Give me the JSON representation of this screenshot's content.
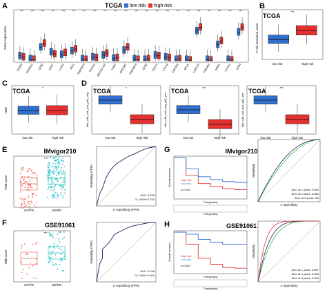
{
  "panels": {
    "A": {
      "letter": "A",
      "title": "TCGA",
      "ylabel": "Gene expression",
      "legend_low": "low risk",
      "legend_high": "high risk"
    },
    "B": {
      "letter": "B",
      "title": "TCGA",
      "ylabel": "T cell exclusion score",
      "sig": "***"
    },
    "C": {
      "letter": "C",
      "title": "TCGA",
      "ylabel": "TIDE",
      "sig": "*"
    },
    "D": {
      "letter": "D",
      "sub": [
        {
          "title": "TCGA",
          "ylabel": "tide_cd8_cd4_pos_pd1_neg",
          "sig": "*"
        },
        {
          "title": "TCGA",
          "ylabel": "tide_cd8_cd4_neg_pd1_pos",
          "sig": "***"
        },
        {
          "title": "TCGA",
          "ylabel": "tide_cd8_cd4_pos_pd1_pos",
          "sig": "***"
        }
      ]
    },
    "E": {
      "letter": "E",
      "title": "IMvigor210",
      "ylabel": "Risk score",
      "sig": "***",
      "roc_x": "1−Specificity (FPR)",
      "roc_y": "Sensitivity (TPR)",
      "auc": "AUC: 0.678",
      "ci": "CI: 0.604−0.753"
    },
    "F": {
      "letter": "F",
      "title": "GSE91061",
      "ylabel": "Risk score",
      "sig": "***",
      "roc_x": "1−Specificity (FPR)",
      "roc_y": "Sensitivity (TPR)",
      "auc": "AUC: 0.749",
      "ci": "CI: 0.604−0.894"
    },
    "G": {
      "letter": "G",
      "title": "IMvigor210",
      "km_y": "Overall survival",
      "km_x": "Time(years)",
      "risk_table_x": "Time(years)",
      "high": "High risk",
      "low": "Low risk",
      "p": "p<0.001",
      "roc_x": "1−Specificity",
      "roc_y": "Sensitivity",
      "auc1": "AUC at 1 years: 0.654",
      "auc2": "AUC at 2 years: 0.684",
      "auc3": "AUC at 3 years: NA"
    },
    "H": {
      "letter": "H",
      "title": "GSE91061",
      "km_y": "Overall survival",
      "km_x": "Time(years)",
      "risk_table_x": "Time(years)",
      "high": "High risk",
      "low": "Low risk",
      "p": "p<0.001",
      "roc_x": "1−Specificity",
      "roc_y": "Sensitivity",
      "auc1": "AUC at 1 years: 0.807",
      "auc2": "AUC at 2 years: 0.844",
      "auc3": "AUC at 3 years: 0.892"
    }
  },
  "groups": {
    "low": "low risk",
    "high": "high risk",
    "resp": "CR/PR",
    "nonresp": "SD/PD"
  },
  "colors": {
    "low": "#2f6fd0",
    "high": "#e53030",
    "resp": "#f06a62",
    "nonresp": "#2ec4c7",
    "roc": "#1a1f5c",
    "green": "#2fbf3f",
    "yellow": "#f0c020"
  },
  "chart_data": [
    {
      "type": "box",
      "panel": "A",
      "categories": [
        "CD200",
        "CD40LG",
        "CD86",
        "CD27",
        "LAIR1",
        "IDO1",
        "TNFRSF4",
        "PDCD1",
        "PDCD1LG2",
        "LAG3",
        "HAVCR2",
        "TNFRSF9",
        "CD28",
        "CD274",
        "CTLA4",
        "TNFSF9",
        "BTLA",
        "LGALS9",
        "TMIGD2",
        "NRP1",
        "VTCN1",
        "CD44"
      ],
      "series": [
        {
          "name": "low risk",
          "medians": [
            0.8,
            0.3,
            2.2,
            1.4,
            1.0,
            1.6,
            0.3,
            0.6,
            0.9,
            0.4,
            1.7,
            0.3,
            0.2,
            0.9,
            0.6,
            0.2,
            0.2,
            4.8,
            0.2,
            2.6,
            0.2,
            4.6
          ]
        },
        {
          "name": "high risk",
          "medians": [
            0.6,
            0.2,
            2.8,
            1.1,
            1.3,
            1.9,
            0.2,
            0.5,
            1.2,
            0.5,
            2.2,
            0.2,
            0.3,
            0.8,
            0.5,
            0.3,
            0.1,
            5.4,
            0.1,
            3.2,
            0.1,
            5.4
          ]
        }
      ],
      "title": "TCGA",
      "ylabel": "Gene expression",
      "ylim": [
        0,
        8
      ]
    },
    {
      "type": "box",
      "panel": "B",
      "categories": [
        "low risk",
        "high risk"
      ],
      "medians": [
        0.0,
        0.9
      ],
      "ylim": [
        -2,
        3
      ]
    },
    {
      "type": "box",
      "panel": "C",
      "categories": [
        "low risk",
        "high risk"
      ],
      "medians": [
        -0.05,
        -0.05
      ],
      "ylim": [
        -2,
        2
      ]
    },
    {
      "type": "box",
      "panel": "D1",
      "categories": [
        "low risk",
        "high risk"
      ],
      "medians": [
        0.7,
        0.3
      ]
    },
    {
      "type": "box",
      "panel": "D2",
      "categories": [
        "low risk",
        "high risk"
      ],
      "medians": [
        0.5,
        0.2
      ]
    },
    {
      "type": "box",
      "panel": "D3",
      "categories": [
        "low risk",
        "high risk"
      ],
      "medians": [
        0.7,
        0.3
      ]
    },
    {
      "type": "line",
      "panel": "E-roc",
      "x": [
        0,
        0.05,
        0.1,
        0.15,
        0.2,
        0.25,
        0.3,
        0.35,
        0.45,
        0.55,
        0.65,
        0.75,
        0.85,
        0.95,
        1
      ],
      "y": [
        0,
        0.2,
        0.3,
        0.45,
        0.55,
        0.62,
        0.68,
        0.72,
        0.78,
        0.84,
        0.88,
        0.93,
        0.97,
        0.99,
        1
      ],
      "auc": 0.678
    },
    {
      "type": "line",
      "panel": "F-roc",
      "x": [
        0,
        0.05,
        0.1,
        0.1,
        0.2,
        0.25,
        0.3,
        0.4,
        0.5,
        0.6,
        0.7,
        0.8,
        0.9,
        1
      ],
      "y": [
        0,
        0.3,
        0.4,
        0.55,
        0.65,
        0.72,
        0.8,
        0.85,
        0.9,
        0.94,
        0.96,
        0.98,
        1,
        1
      ],
      "auc": 0.749
    },
    {
      "type": "line",
      "panel": "G-km",
      "x": [
        0,
        0.5,
        1,
        1.5,
        2,
        2.5,
        3
      ],
      "series": [
        {
          "name": "High risk",
          "values": [
            1,
            0.55,
            0.35,
            0.28,
            0.22,
            0.2,
            0.2
          ]
        },
        {
          "name": "Low risk",
          "values": [
            1,
            0.72,
            0.52,
            0.45,
            0.4,
            0.38,
            0.38
          ]
        }
      ]
    },
    {
      "type": "line",
      "panel": "H-km",
      "x": [
        0,
        0.5,
        1,
        1.5,
        2,
        2.5,
        3
      ],
      "series": [
        {
          "name": "High risk",
          "values": [
            1,
            0.7,
            0.35,
            0.2,
            0.12,
            0.1,
            0.1
          ]
        },
        {
          "name": "Low risk",
          "values": [
            1,
            0.95,
            0.82,
            0.75,
            0.7,
            0.7,
            0.7
          ]
        }
      ]
    }
  ]
}
